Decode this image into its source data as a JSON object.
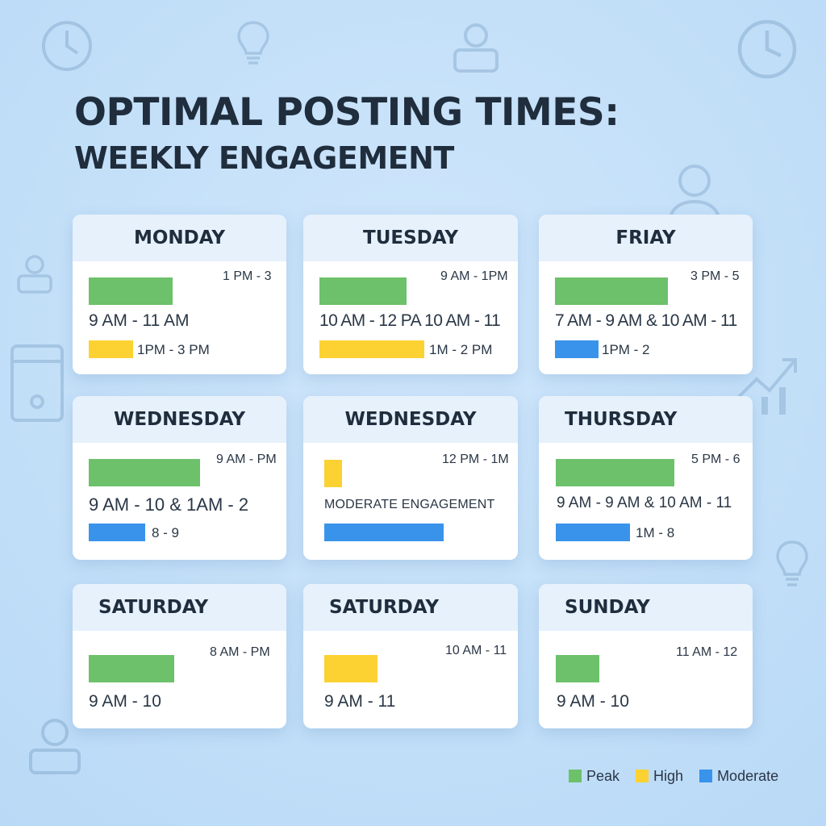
{
  "title": {
    "line1": "OPTIMAL POSTING TIMES:",
    "line2": "WEEKLY ENGAGEMENT"
  },
  "cards": [
    {
      "day": "MONDAY",
      "top_right": "1 PM - 3",
      "main": "9 AM - 11 AM",
      "second": "1PM - 3 PM",
      "bar1": "peak",
      "bar2": "high"
    },
    {
      "day": "TUESDAY",
      "top_right": "9 AM - 1PM",
      "main": "10 AM - 12 PA 10 AM - 11",
      "second": "1M - 2 PM",
      "bar1": "peak",
      "bar2": "high"
    },
    {
      "day": "FRIAY",
      "top_right": "3 PM - 5",
      "main": "7 AM - 9 AM & 10 AM - 11",
      "second": "1PM - 2",
      "bar1": "peak",
      "bar2": "moderate"
    },
    {
      "day": "WEDNESDAY",
      "top_right": "9 AM - PM",
      "main": "9 AM - 10 & 1AM - 2",
      "second": "8 - 9",
      "bar1": "peak",
      "bar2": "moderate"
    },
    {
      "day": "WEDNESDAY",
      "top_right": "12 PM - 1M",
      "main": "MODERATE ENGAGEMENT",
      "second": "",
      "bar1": "high",
      "bar2": "moderate"
    },
    {
      "day": "THURSDAY",
      "top_right": "5 PM - 6",
      "main": "9 AM - 9 AM & 10 AM - 11",
      "second": "1M - 8",
      "bar1": "peak",
      "bar2": "moderate"
    },
    {
      "day": "SATURDAY",
      "top_right": "8 AM - PM",
      "main": "9 AM - 10",
      "bar1": "peak"
    },
    {
      "day": "SATURDAY",
      "top_right": "10 AM - 11",
      "main": "9 AM - 11",
      "bar1": "high"
    },
    {
      "day": "SUNDAY",
      "top_right": "11 AM - 12",
      "main": "9 AM - 10",
      "bar1": "peak"
    }
  ],
  "legend": {
    "peak": "Peak",
    "high": "High",
    "moderate": "Moderate"
  },
  "colors": {
    "peak": "#6cc16a",
    "high": "#fbd232",
    "moderate": "#3a93ea"
  },
  "icons": [
    "clock-icon",
    "lightbulb-icon",
    "user-icon",
    "clock-icon",
    "user-icon",
    "tablet-icon",
    "growth-chart-icon",
    "user-icon",
    "lightbulb-icon"
  ]
}
